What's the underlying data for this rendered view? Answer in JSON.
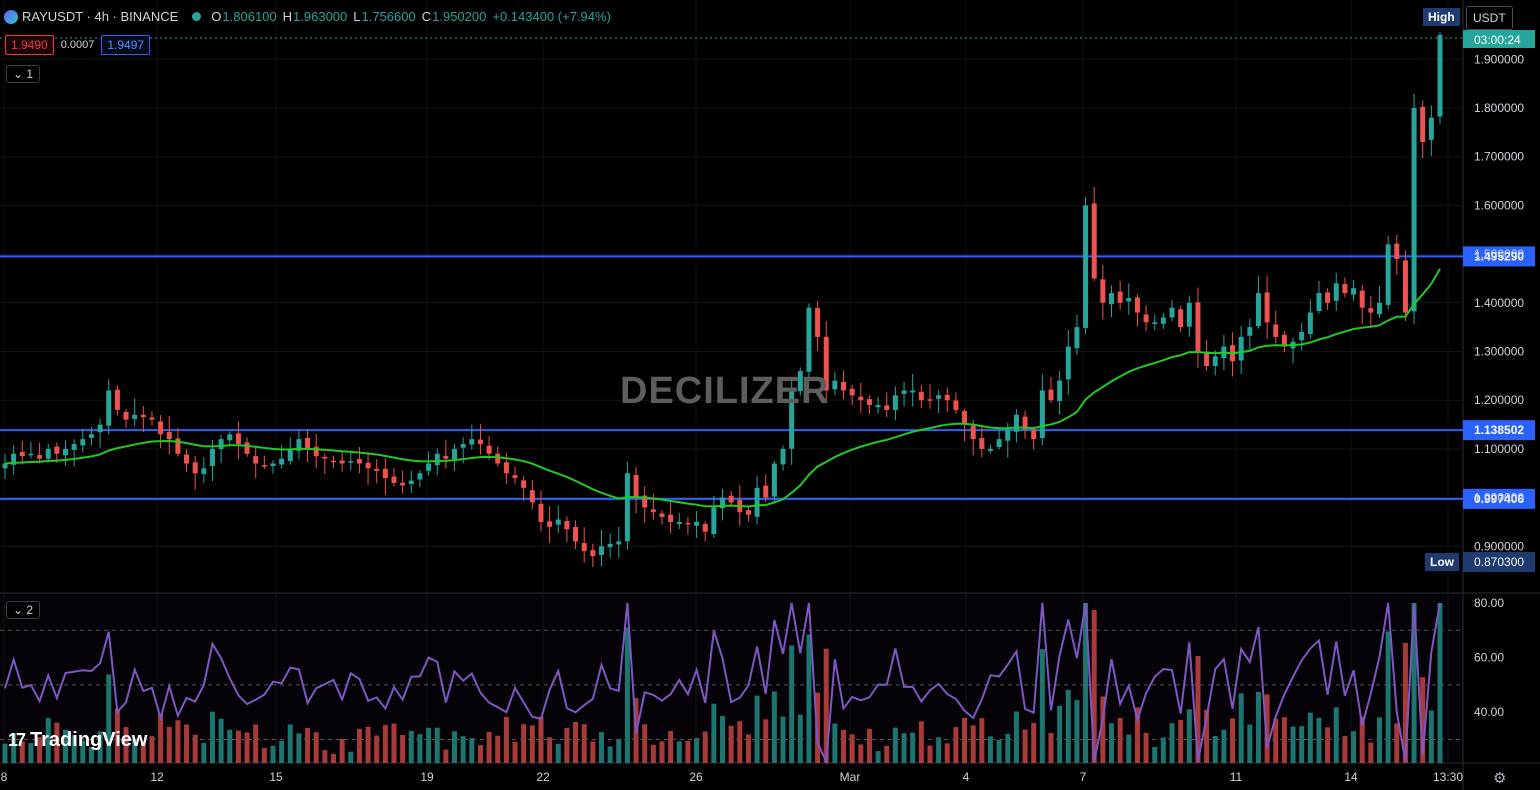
{
  "header": {
    "symbol": "RAYUSDT · 4h · BINANCE",
    "open_label": "O",
    "open": "1.806100",
    "high_label": "H",
    "high": "1.963000",
    "low_label": "L",
    "low": "1.756600",
    "close_label": "C",
    "close": "1.950200",
    "change": "+0.143400 (+7.94%)",
    "bid": "1.9490",
    "spread": "0.0007",
    "ask": "1.9497"
  },
  "panes": {
    "main_tag": "1",
    "rsi_tag": "2"
  },
  "buttons": {
    "high": "High",
    "low": "Low",
    "currency": "USDT"
  },
  "watermark": "DECILIZER",
  "branding": "TradingView",
  "countdown": "03:00:24",
  "colors": {
    "up": "#26a69a",
    "down": "#ef5350",
    "ma": "#22c922",
    "rsi": "#7e57c2",
    "hline": "#2962ff"
  },
  "chart_data": [
    {
      "type": "candlestick",
      "price_axis": {
        "min": 0.85,
        "max": 1.98,
        "ticks": [
          "1.900000",
          "1.800000",
          "1.700000",
          "1.600000",
          "1.500000",
          "1.400000",
          "1.300000",
          "1.200000",
          "1.100000",
          "1.000000",
          "0.900000"
        ]
      },
      "x_axis": {
        "ticks": [
          "8",
          "12",
          "15",
          "19",
          "22",
          "26",
          "Mar",
          "4",
          "7",
          "11",
          "14",
          "13:30"
        ]
      },
      "horizontal_levels": [
        {
          "label": "1.495290",
          "value": 1.49529
        },
        {
          "label": "1.138502",
          "value": 1.138502
        },
        {
          "label": "0.997406",
          "value": 0.997406
        }
      ],
      "current_price": {
        "value": 1.9502,
        "countdown": "03:00:24"
      },
      "low_marker": {
        "label": "0.870300",
        "value": 0.8703
      },
      "closes": [
        1.07,
        1.09,
        1.085,
        1.09,
        1.08,
        1.1,
        1.09,
        1.1,
        1.11,
        1.12,
        1.13,
        1.15,
        1.22,
        1.18,
        1.16,
        1.17,
        1.165,
        1.16,
        1.13,
        1.12,
        1.09,
        1.07,
        1.05,
        1.06,
        1.1,
        1.12,
        1.13,
        1.11,
        1.09,
        1.07,
        1.065,
        1.07,
        1.08,
        1.1,
        1.12,
        1.1,
        1.085,
        1.08,
        1.075,
        1.07,
        1.075,
        1.07,
        1.06,
        1.055,
        1.04,
        1.03,
        1.025,
        1.035,
        1.05,
        1.07,
        1.09,
        1.08,
        1.1,
        1.11,
        1.12,
        1.11,
        1.09,
        1.07,
        1.05,
        1.04,
        1.02,
        0.99,
        0.95,
        0.94,
        0.955,
        0.935,
        0.91,
        0.89,
        0.88,
        0.9,
        0.905,
        0.91,
        1.05,
        1.0,
        0.98,
        0.97,
        0.96,
        0.95,
        0.95,
        0.945,
        0.95,
        0.93,
        0.98,
        1.0,
        0.99,
        0.97,
        0.965,
        1.02,
        1.0,
        1.07,
        1.1,
        1.22,
        1.26,
        1.39,
        1.33,
        1.22,
        1.24,
        1.22,
        1.21,
        1.2,
        1.19,
        1.19,
        1.18,
        1.21,
        1.22,
        1.22,
        1.2,
        1.2,
        1.21,
        1.2,
        1.18,
        1.15,
        1.12,
        1.1,
        1.1,
        1.12,
        1.14,
        1.17,
        1.14,
        1.12,
        1.22,
        1.2,
        1.24,
        1.31,
        1.35,
        1.6,
        1.45,
        1.4,
        1.42,
        1.4,
        1.41,
        1.38,
        1.36,
        1.36,
        1.37,
        1.39,
        1.35,
        1.4,
        1.3,
        1.27,
        1.29,
        1.31,
        1.28,
        1.33,
        1.35,
        1.42,
        1.36,
        1.33,
        1.31,
        1.32,
        1.34,
        1.38,
        1.42,
        1.4,
        1.44,
        1.42,
        1.43,
        1.39,
        1.38,
        1.4,
        1.52,
        1.49,
        1.38,
        1.8,
        1.73,
        1.78,
        1.95
      ],
      "ma_last": 1.42,
      "rsi": {
        "axis_ticks": [
          "80.00",
          "60.00",
          "40.00"
        ],
        "overbought": 70,
        "oversold": 30,
        "mid": 50,
        "last": 72
      }
    }
  ]
}
